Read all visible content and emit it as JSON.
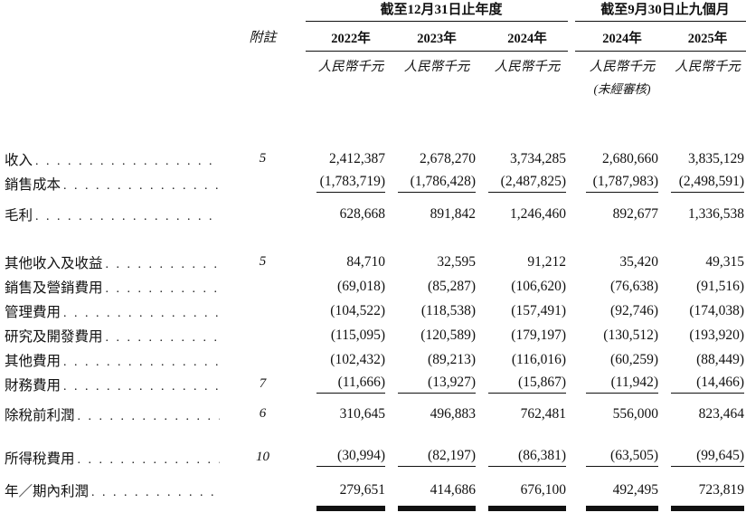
{
  "page": {
    "background_color": "#ffffff",
    "text_color": "#111111"
  },
  "table": {
    "note_column_header": "附註",
    "column_groups": [
      {
        "label": "截至12月31日止年度",
        "columns": 3
      },
      {
        "label": "截至9月30日止九個月",
        "columns": 2
      }
    ],
    "columns": [
      {
        "year": "2022年",
        "unit": "人民幣千元",
        "subnote": ""
      },
      {
        "year": "2023年",
        "unit": "人民幣千元",
        "subnote": ""
      },
      {
        "year": "2024年",
        "unit": "人民幣千元",
        "subnote": ""
      },
      {
        "year": "2024年",
        "unit": "人民幣千元",
        "subnote": "(未經審核)"
      },
      {
        "year": "2025年",
        "unit": "人民幣千元",
        "subnote": ""
      }
    ],
    "rows": [
      {
        "label": "收入",
        "note": "5",
        "values": [
          "2,412,387",
          "2,678,270",
          "3,734,285",
          "2,680,660",
          "3,835,129"
        ]
      },
      {
        "label": "銷售成本",
        "note": "",
        "values": [
          "(1,783,719)",
          "(1,786,428)",
          "(2,487,825)",
          "(1,787,983)",
          "(2,498,591)"
        ]
      },
      {
        "label": "毛利",
        "note": "",
        "values": [
          "628,668",
          "891,842",
          "1,246,460",
          "892,677",
          "1,336,538"
        ]
      },
      {
        "label": "其他收入及收益",
        "note": "5",
        "values": [
          "84,710",
          "32,595",
          "91,212",
          "35,420",
          "49,315"
        ]
      },
      {
        "label": "銷售及營銷費用",
        "note": "",
        "values": [
          "(69,018)",
          "(85,287)",
          "(106,620)",
          "(76,638)",
          "(91,516)"
        ]
      },
      {
        "label": "管理費用",
        "note": "",
        "values": [
          "(104,522)",
          "(118,538)",
          "(157,491)",
          "(92,746)",
          "(174,038)"
        ]
      },
      {
        "label": "研究及開發費用",
        "note": "",
        "values": [
          "(115,095)",
          "(120,589)",
          "(179,197)",
          "(130,512)",
          "(193,920)"
        ]
      },
      {
        "label": "其他費用",
        "note": "",
        "values": [
          "(102,432)",
          "(89,213)",
          "(116,016)",
          "(60,259)",
          "(88,449)"
        ]
      },
      {
        "label": "財務費用",
        "note": "7",
        "values": [
          "(11,666)",
          "(13,927)",
          "(15,867)",
          "(11,942)",
          "(14,466)"
        ]
      },
      {
        "label": "除稅前利潤",
        "note": "6",
        "values": [
          "310,645",
          "496,883",
          "762,481",
          "556,000",
          "823,464"
        ]
      },
      {
        "label": "所得稅費用",
        "note": "10",
        "values": [
          "(30,994)",
          "(82,197)",
          "(86,381)",
          "(63,505)",
          "(99,645)"
        ]
      },
      {
        "label": "年／期內利潤",
        "note": "",
        "values": [
          "279,651",
          "414,686",
          "676,100",
          "492,495",
          "723,819"
        ]
      }
    ]
  }
}
